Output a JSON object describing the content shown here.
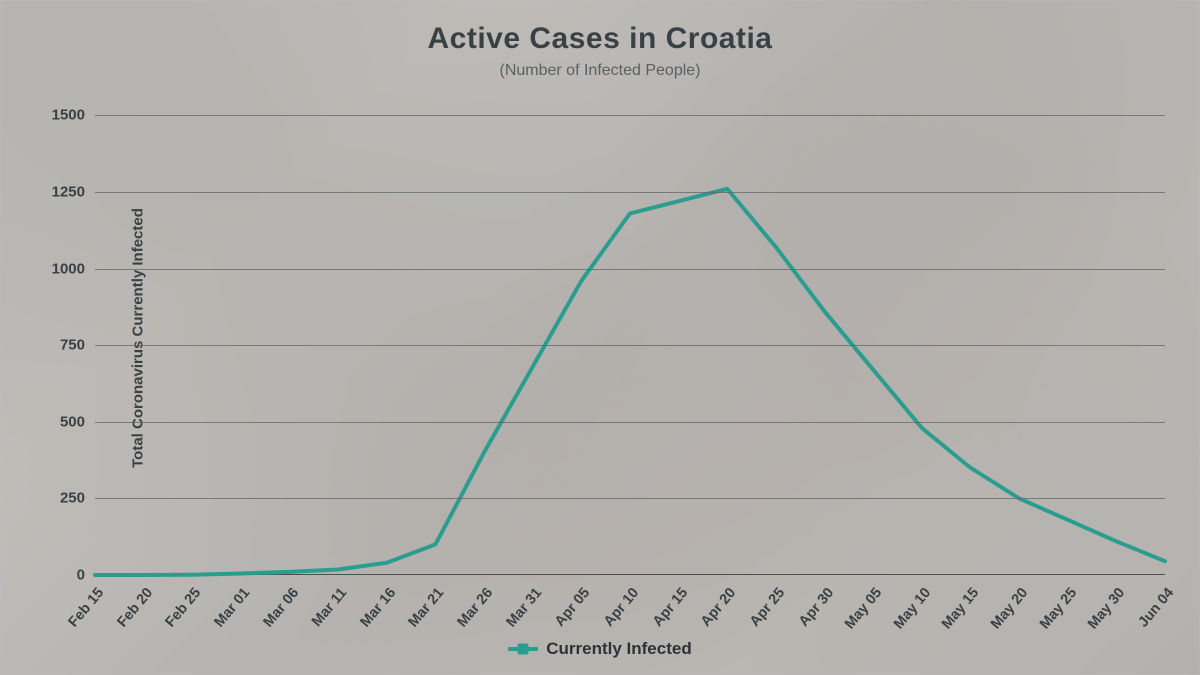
{
  "title": "Active Cases in Croatia",
  "subtitle": "(Number of Infected People)",
  "y_axis_label": "Total Coronavirus Currently Infected",
  "chart": {
    "type": "line",
    "line_color": "#2a9d8f",
    "line_width": 4,
    "background_overlay": "rgba(235,235,235,0.55)",
    "grid_color": "#5f6569",
    "axis_color": "#4a5054",
    "text_color": "#3a4145",
    "ylim": [
      0,
      1550
    ],
    "yticks": [
      0,
      250,
      500,
      750,
      1000,
      1250,
      1500
    ],
    "x_labels": [
      "Feb 15",
      "Feb 20",
      "Feb 25",
      "Mar 01",
      "Mar 06",
      "Mar 11",
      "Mar 16",
      "Mar 21",
      "Mar 26",
      "Mar 31",
      "Apr 05",
      "Apr 10",
      "Apr 15",
      "Apr 20",
      "Apr 25",
      "Apr 30",
      "May 05",
      "May 10",
      "May 15",
      "May 20",
      "May 25",
      "May 30",
      "Jun 04"
    ],
    "series": {
      "name": "Currently Infected",
      "values": [
        0,
        0,
        1,
        5,
        10,
        18,
        40,
        100,
        400,
        680,
        960,
        1180,
        1220,
        1260,
        1070,
        860,
        670,
        480,
        350,
        250,
        180,
        110,
        45
      ]
    },
    "title_fontsize": 30,
    "subtitle_fontsize": 16,
    "label_fontsize": 15,
    "tick_fontsize": 15,
    "legend_fontsize": 17
  }
}
